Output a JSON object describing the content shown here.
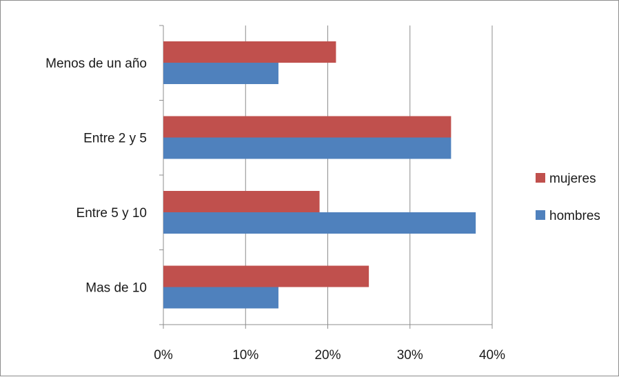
{
  "chart_data": {
    "type": "bar",
    "orientation": "horizontal",
    "title": "",
    "xlabel": "",
    "ylabel": "",
    "categories": [
      "Menos de un año",
      "Entre 2 y 5",
      "Entre 5 y 10",
      "Mas de 10"
    ],
    "series": [
      {
        "name": "mujeres",
        "color": "#c0504d",
        "values": [
          21,
          35,
          19,
          25
        ]
      },
      {
        "name": "hombres",
        "color": "#4f81bd",
        "values": [
          14,
          35,
          38,
          14
        ]
      }
    ],
    "xlim": [
      0,
      40
    ],
    "x_ticks": [
      0,
      10,
      20,
      30,
      40
    ],
    "x_tick_labels": [
      "0%",
      "10%",
      "20%",
      "30%",
      "40%"
    ],
    "value_format": "percent",
    "grid": "vertical",
    "legend": "right"
  }
}
